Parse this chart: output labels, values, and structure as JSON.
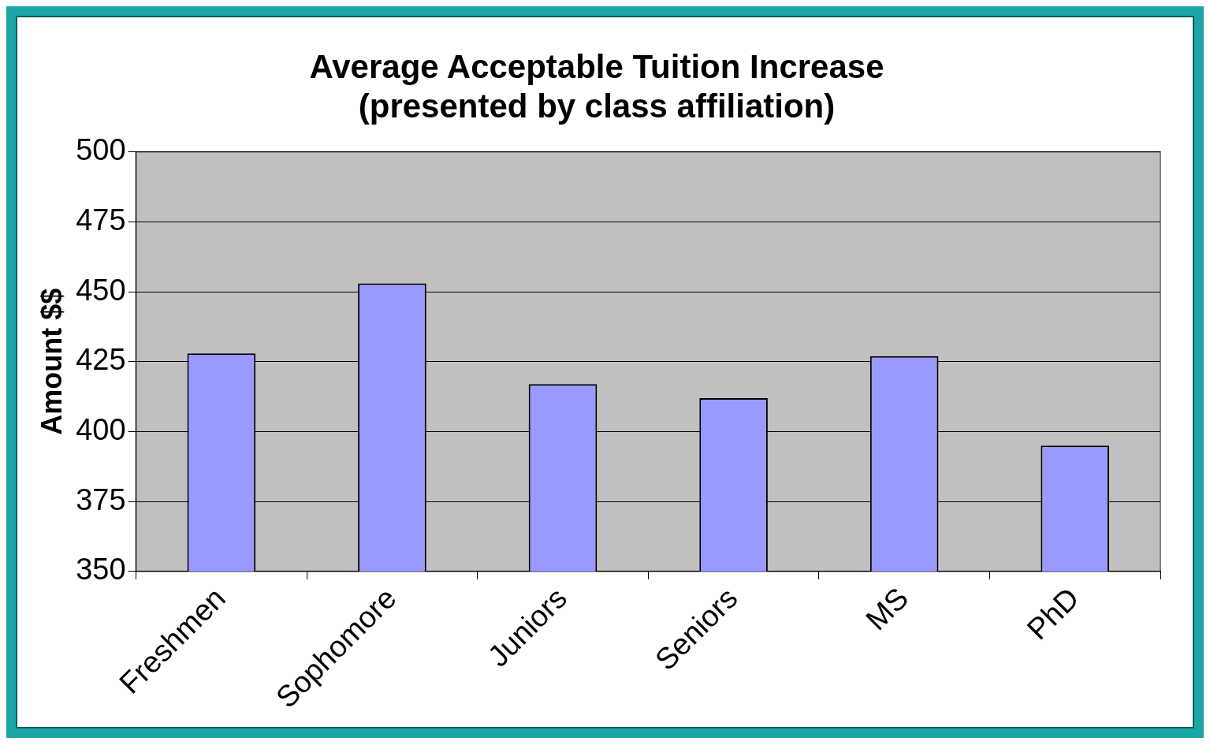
{
  "chart_data": {
    "type": "bar",
    "title": "Average Acceptable Tuition Increase\n(presented by class affiliation)",
    "ylabel": "Amount $$",
    "categories": [
      "Freshmen",
      "Sophomore",
      "Juniors",
      "Seniors",
      "MS",
      "PhD"
    ],
    "values": [
      428,
      453,
      417,
      412,
      427,
      395
    ],
    "color": "#9999ff",
    "ylim": [
      350,
      500
    ],
    "yticks": [
      350,
      375,
      400,
      425,
      450,
      475,
      500
    ],
    "grid": "y",
    "legend": false
  }
}
